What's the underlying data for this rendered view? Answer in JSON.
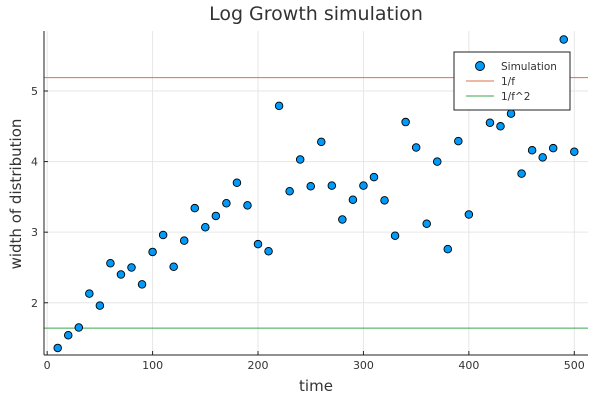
{
  "chart_data": {
    "type": "scatter",
    "title": "Log Growth simulation",
    "xlabel": "time",
    "ylabel": "width of distribution",
    "xlim": [
      -3,
      513
    ],
    "ylim": [
      1.26,
      5.85
    ],
    "xticks": [
      0,
      100,
      200,
      300,
      400,
      500
    ],
    "yticks": [
      2,
      3,
      4,
      5
    ],
    "grid": true,
    "legend_position": "top-right",
    "series": [
      {
        "name": "Simulation",
        "kind": "scatter",
        "color": "#009AFA",
        "x": [
          10,
          20,
          30,
          40,
          50,
          60,
          70,
          80,
          90,
          100,
          110,
          120,
          130,
          140,
          150,
          160,
          170,
          180,
          190,
          200,
          210,
          220,
          230,
          240,
          250,
          260,
          270,
          280,
          290,
          300,
          310,
          320,
          330,
          340,
          350,
          360,
          370,
          380,
          390,
          400,
          420,
          430,
          440,
          450,
          460,
          470,
          480,
          490,
          500
        ],
        "y": [
          1.36,
          1.54,
          1.65,
          2.13,
          1.96,
          2.56,
          2.4,
          2.5,
          2.26,
          2.72,
          2.96,
          2.51,
          2.88,
          3.34,
          3.07,
          3.23,
          3.41,
          3.7,
          3.38,
          2.83,
          2.73,
          4.79,
          3.58,
          4.03,
          3.65,
          4.28,
          3.66,
          3.18,
          3.46,
          3.66,
          3.78,
          3.45,
          2.95,
          4.56,
          4.2,
          3.12,
          4.0,
          2.76,
          4.29,
          3.25,
          4.55,
          4.5,
          4.68,
          3.83,
          4.16,
          4.06,
          4.19,
          5.73,
          4.14
        ]
      },
      {
        "name": "1/f",
        "kind": "hline",
        "color": "#E26F46",
        "y": 5.19
      },
      {
        "name": "1/f^2",
        "kind": "hline",
        "color": "#3DA44D",
        "y": 1.64
      }
    ]
  }
}
